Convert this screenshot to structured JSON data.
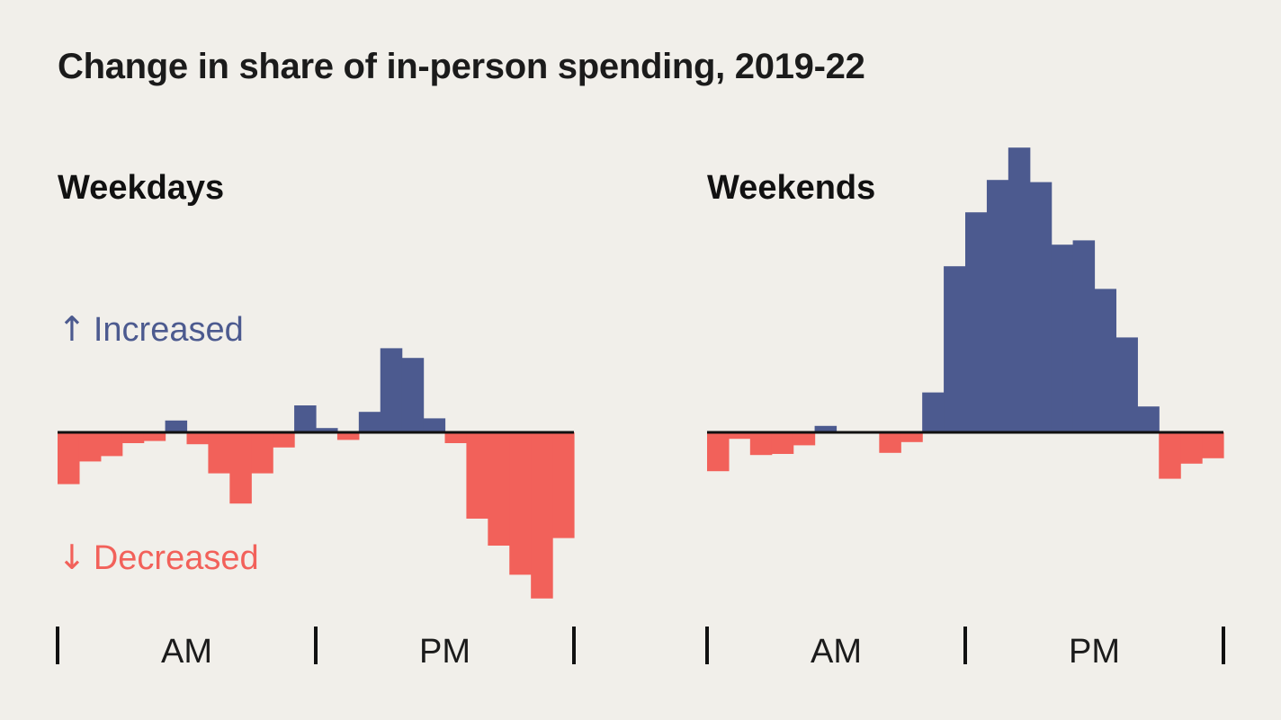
{
  "title": "Change in share of in-person spending, 2019-22",
  "colors": {
    "increase": "#4c5a8f",
    "decrease": "#f2615a",
    "axis": "#111111",
    "background": "#f1efea"
  },
  "legend": {
    "increase": {
      "icon": "arrow-up-icon",
      "label": "Increased"
    },
    "decrease": {
      "icon": "arrow-down-icon",
      "label": "Decreased"
    }
  },
  "chart_data": [
    {
      "type": "bar",
      "title": "Weekdays",
      "categories": [
        "0",
        "1",
        "2",
        "3",
        "4",
        "5",
        "6",
        "7",
        "8",
        "9",
        "10",
        "11",
        "12",
        "13",
        "14",
        "15",
        "16",
        "17",
        "18",
        "19",
        "20",
        "21",
        "22",
        "23"
      ],
      "values": [
        -2.4,
        -1.35,
        -1.1,
        -0.5,
        -0.4,
        0.55,
        -0.55,
        -1.9,
        -3.3,
        -1.9,
        -0.7,
        1.25,
        0.2,
        -0.35,
        0.95,
        3.9,
        3.45,
        0.65,
        -0.5,
        -4.0,
        -5.25,
        -6.6,
        -7.7,
        -4.9
      ],
      "tick_labels": [
        "AM",
        "PM"
      ],
      "ylim": [
        -8,
        13.5
      ]
    },
    {
      "type": "bar",
      "title": "Weekends",
      "categories": [
        "0",
        "1",
        "2",
        "3",
        "4",
        "5",
        "6",
        "7",
        "8",
        "9",
        "10",
        "11",
        "12",
        "13",
        "14",
        "15",
        "16",
        "17",
        "18",
        "19",
        "20",
        "21",
        "22",
        "23"
      ],
      "values": [
        -1.8,
        -0.3,
        -1.05,
        -1.0,
        -0.6,
        0.3,
        0.0,
        0.0,
        -0.95,
        -0.45,
        1.85,
        7.7,
        10.2,
        11.7,
        13.2,
        11.6,
        8.7,
        8.9,
        6.65,
        4.4,
        1.2,
        -2.15,
        -1.45,
        -1.2
      ],
      "tick_labels": [
        "AM",
        "PM"
      ],
      "ylim": [
        -8,
        13.5
      ]
    }
  ]
}
